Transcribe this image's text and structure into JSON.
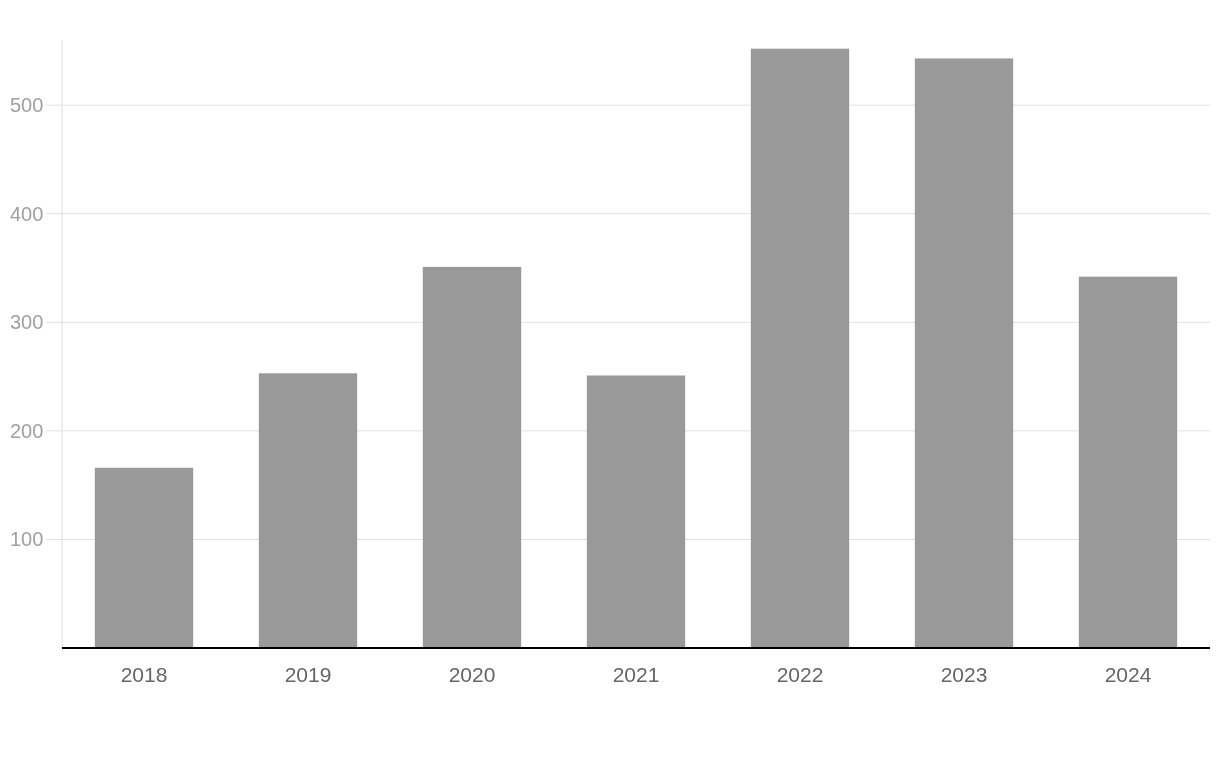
{
  "chart_data": {
    "type": "bar",
    "categories": [
      "2018",
      "2019",
      "2020",
      "2021",
      "2022",
      "2023",
      "2024"
    ],
    "values": [
      166,
      253,
      351,
      251,
      552,
      543,
      342
    ],
    "color": "#999999",
    "ylim": [
      0,
      560
    ],
    "yticks": [
      100,
      200,
      300,
      400,
      500
    ],
    "grid": "y"
  }
}
